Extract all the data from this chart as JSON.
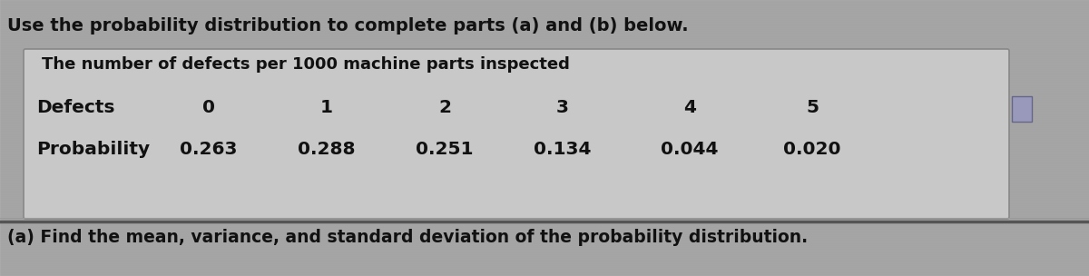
{
  "bg_color": "#b8b8b8",
  "title_text": "Use the probability distribution to complete parts (a) and (b) below.",
  "table_title": "The number of defects per 1000 machine parts inspected",
  "row1_label": "Defects",
  "row2_label": "Probability",
  "defects": [
    "0",
    "1",
    "2",
    "3",
    "4",
    "5"
  ],
  "probabilities": [
    "0.263",
    "0.288",
    "0.251",
    "0.134",
    "0.044",
    "0.020"
  ],
  "part_a_text": "(a) Find the mean, variance, and standard deviation of the probability distribution.",
  "table_bg": "#c8c8c8",
  "border_color": "#888888",
  "text_color": "#111111",
  "title_fontsize": 14.0,
  "table_title_fontsize": 13.0,
  "row_fontsize": 14.5,
  "part_a_fontsize": 13.5,
  "sep_line_color": "#555555",
  "icon_color": "#9999bb"
}
